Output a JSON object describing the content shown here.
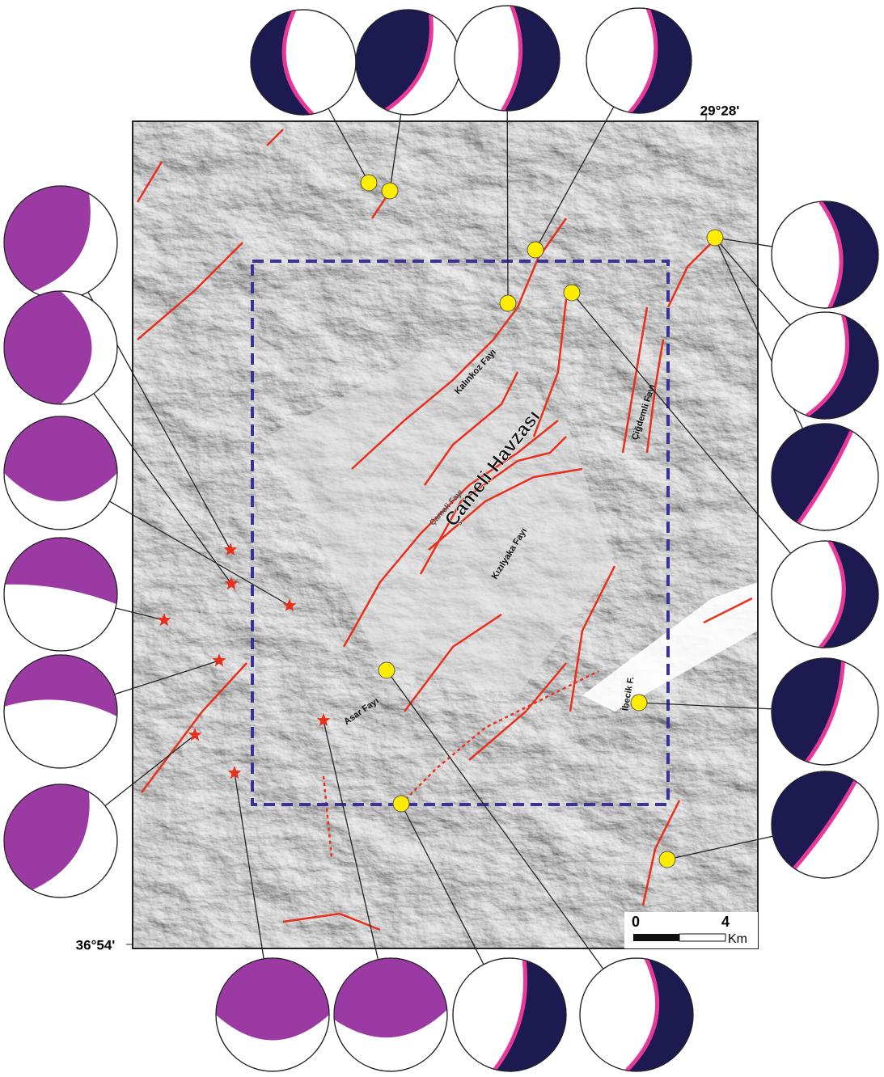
{
  "map": {
    "coords": {
      "longitude": "29°28'",
      "latitude": "36°54'"
    },
    "labels": {
      "basin": "Çameli Havzası",
      "kalinkoz": "Kalınkoz Fayı",
      "cigdemli": "Çiğdemli Fayı",
      "cameli": "Çameli Fayı",
      "kizilyaka": "Kızılyaka Fayı",
      "asar": "Asar Fayı",
      "ibecik": "İbecik F."
    },
    "scale": {
      "start": "0",
      "end": "4",
      "unit": "Km"
    }
  }
}
